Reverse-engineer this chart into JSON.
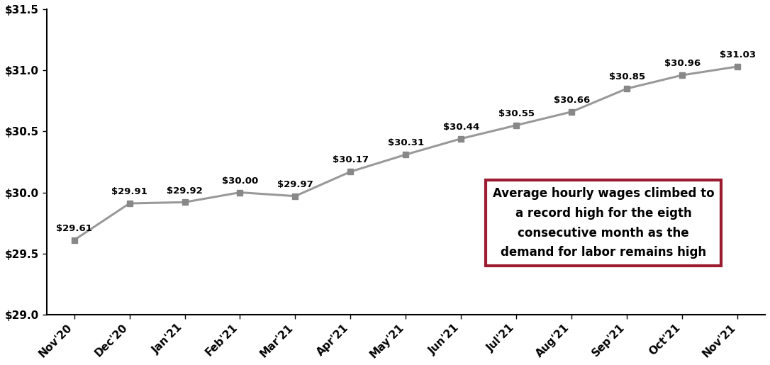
{
  "x_labels": [
    "Nov'20",
    "Dec'20",
    "Jan'21",
    "Feb'21",
    "Mar'21",
    "Apr'21",
    "May'21",
    "Jun'21",
    "Jul'21",
    "Aug'21",
    "Sep'21",
    "Oct'21",
    "Nov'21"
  ],
  "y_values": [
    29.61,
    29.91,
    29.92,
    30.0,
    29.97,
    30.17,
    30.31,
    30.44,
    30.55,
    30.66,
    30.85,
    30.96,
    31.03
  ],
  "y_labels": [
    "$29.61",
    "$29.91",
    "$29.92",
    "$30.00",
    "$29.97",
    "$30.17",
    "$30.31",
    "$30.44",
    "$30.55",
    "$30.66",
    "$30.85",
    "$30.96",
    "$31.03"
  ],
  "ylim": [
    29.0,
    31.5
  ],
  "ytick_vals": [
    29.0,
    29.5,
    30.0,
    30.5,
    31.0,
    31.5
  ],
  "ytick_labels": [
    "$29.0",
    "$29.5",
    "$30.0",
    "$30.5",
    "$31.0",
    "$31.5"
  ],
  "line_color": "#999999",
  "marker_color": "#888888",
  "annotation_box_text": "Average hourly wages climbed to\na record high for the eigth\nconsecutive month as the\ndemand for labor remains high",
  "box_edge_color": "#9B1C31",
  "box_face_color": "#ffffff",
  "background_color": "#ffffff",
  "label_fontsize": 9.5,
  "tick_fontsize": 11,
  "annot_fontsize": 12
}
